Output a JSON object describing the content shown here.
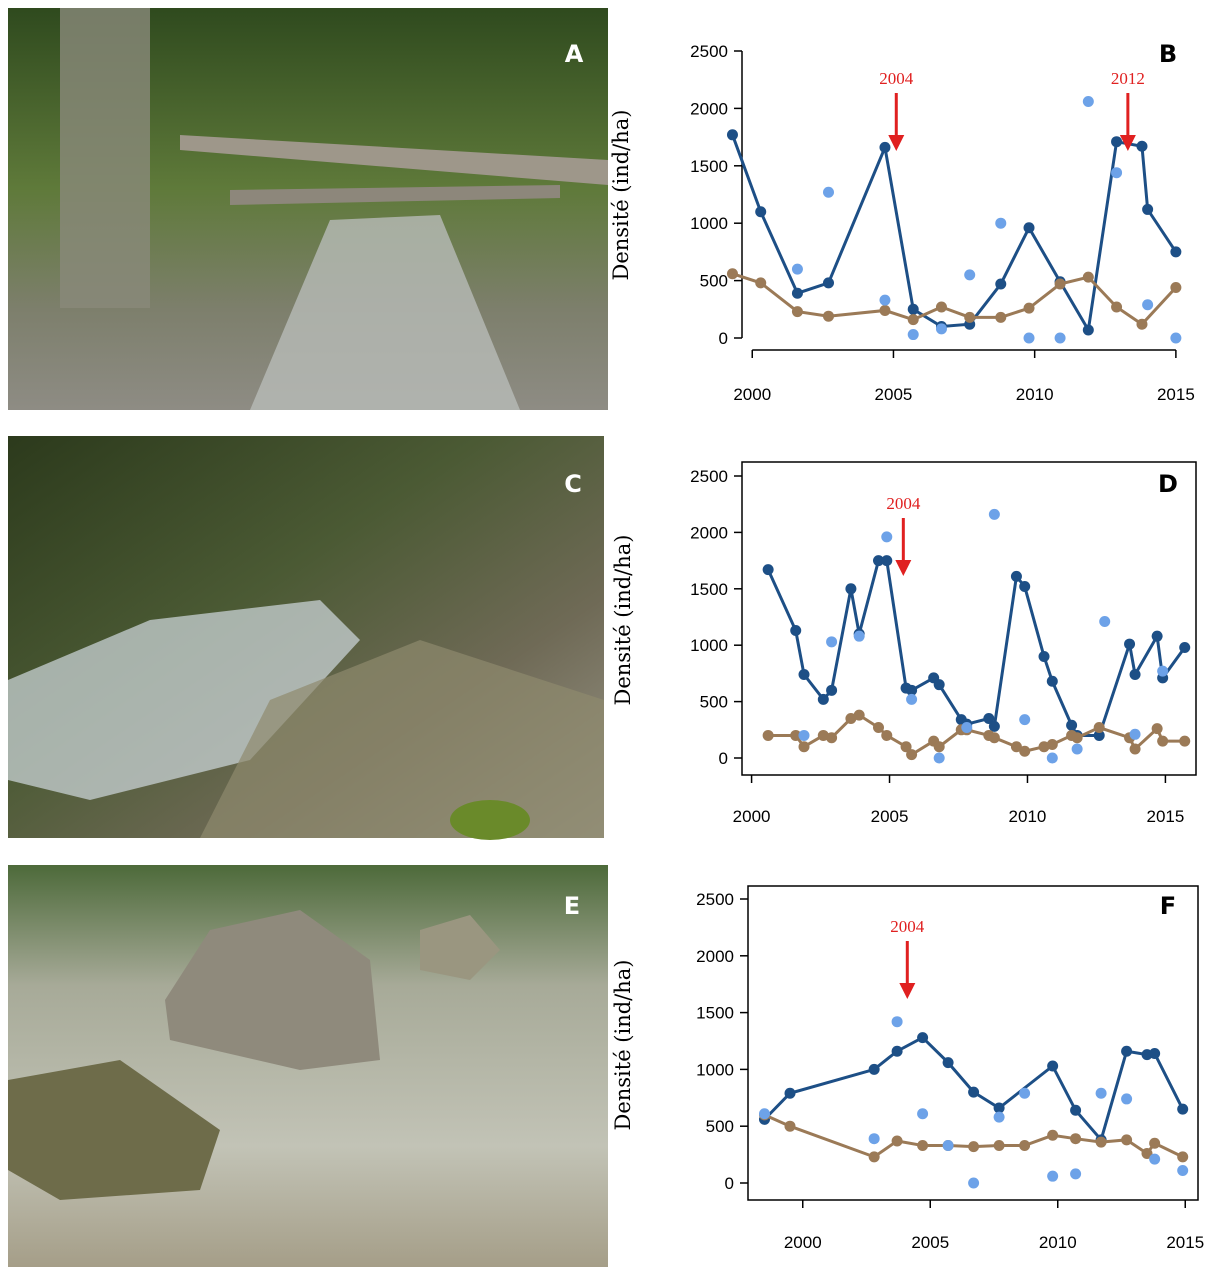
{
  "photos": [
    {
      "label": "A"
    },
    {
      "label": "C"
    },
    {
      "label": "E"
    }
  ],
  "chart_data": [
    {
      "type": "line",
      "panel": "B",
      "ylabel": "Densité (ind/ha)",
      "frame": false,
      "xlim": [
        1999,
        2015.5
      ],
      "xticks": [
        2000,
        2005,
        2010,
        2015
      ],
      "ylim": [
        0,
        2500
      ],
      "yticks": [
        0,
        500,
        1000,
        1500,
        2000,
        2500
      ],
      "annotations": [
        {
          "label": "2004",
          "x": 2005.1
        },
        {
          "label": "2012",
          "x": 2013.3
        }
      ],
      "series": [
        {
          "style": "line",
          "color": "#1d4f86",
          "x": [
            1999.3,
            2000.3,
            2001.6,
            2002.7,
            2004.7,
            2005.7,
            2006.7,
            2007.7,
            2008.8,
            2009.8,
            2010.9,
            2011.9,
            2012.9,
            2013.8,
            2014.0,
            2015.0
          ],
          "values": [
            1770,
            1100,
            390,
            480,
            1660,
            250,
            100,
            120,
            470,
            960,
            490,
            70,
            1710,
            1670,
            1120,
            750
          ]
        },
        {
          "style": "line",
          "color": "#9b7a57",
          "x": [
            1999.3,
            2000.3,
            2001.6,
            2002.7,
            2004.7,
            2005.7,
            2006.7,
            2007.7,
            2008.8,
            2009.8,
            2010.9,
            2011.9,
            2012.9,
            2013.8,
            2015.0
          ],
          "values": [
            560,
            480,
            230,
            190,
            240,
            160,
            270,
            180,
            180,
            260,
            470,
            530,
            270,
            120,
            440
          ]
        },
        {
          "style": "points",
          "color": "#6da2e8",
          "x": [
            2001.6,
            2002.7,
            2004.7,
            2005.7,
            2006.7,
            2007.7,
            2008.8,
            2009.8,
            2010.9,
            2011.9,
            2012.9,
            2014.0,
            2015.0
          ],
          "values": [
            600,
            1270,
            330,
            30,
            80,
            550,
            1000,
            0,
            0,
            2060,
            1440,
            290,
            0
          ]
        }
      ]
    },
    {
      "type": "line",
      "panel": "D",
      "ylabel": "Densité (ind/ha)",
      "frame": true,
      "xlim": [
        1999,
        2016
      ],
      "xticks": [
        2000,
        2005,
        2010,
        2015
      ],
      "ylim": [
        0,
        2500
      ],
      "yticks": [
        0,
        500,
        1000,
        1500,
        2000,
        2500
      ],
      "annotations": [
        {
          "label": "2004",
          "x": 2005.5
        }
      ],
      "series": [
        {
          "style": "line",
          "color": "#1d4f86",
          "x": [
            2000.6,
            2001.6,
            2001.9,
            2002.6,
            2002.9,
            2003.6,
            2003.9,
            2004.6,
            2004.9,
            2005.6,
            2005.8,
            2006.6,
            2006.8,
            2007.6,
            2007.8,
            2008.6,
            2008.8,
            2009.6,
            2009.9,
            2010.6,
            2010.9,
            2011.6,
            2011.8,
            2012.6,
            2013.7,
            2013.9,
            2014.7,
            2014.9,
            2015.7
          ],
          "values": [
            1670,
            1130,
            740,
            520,
            600,
            1500,
            1100,
            1750,
            1750,
            620,
            600,
            710,
            650,
            340,
            300,
            350,
            280,
            1610,
            1520,
            900,
            680,
            290,
            200,
            200,
            1010,
            740,
            1080,
            710,
            980
          ]
        },
        {
          "style": "line",
          "color": "#9b7a57",
          "x": [
            2000.6,
            2001.6,
            2001.9,
            2002.6,
            2002.9,
            2003.6,
            2003.9,
            2004.6,
            2004.9,
            2005.6,
            2005.8,
            2006.6,
            2006.8,
            2007.6,
            2007.8,
            2008.6,
            2008.8,
            2009.6,
            2009.9,
            2010.6,
            2010.9,
            2011.6,
            2011.8,
            2012.6,
            2013.7,
            2013.9,
            2014.7,
            2014.9,
            2015.7
          ],
          "values": [
            200,
            200,
            100,
            200,
            180,
            350,
            380,
            270,
            200,
            100,
            30,
            150,
            100,
            250,
            250,
            200,
            180,
            100,
            60,
            100,
            120,
            200,
            180,
            270,
            180,
            80,
            260,
            150,
            150
          ]
        },
        {
          "style": "points",
          "color": "#6da2e8",
          "x": [
            2001.9,
            2002.9,
            2003.9,
            2004.9,
            2005.8,
            2006.8,
            2007.8,
            2008.8,
            2009.9,
            2010.9,
            2011.8,
            2012.8,
            2013.9,
            2014.9
          ],
          "values": [
            200,
            1030,
            1080,
            1960,
            520,
            0,
            270,
            2160,
            340,
            0,
            80,
            1210,
            210,
            770
          ]
        }
      ]
    },
    {
      "type": "line",
      "panel": "F",
      "ylabel": "Densité (ind/ha)",
      "frame": true,
      "xlim": [
        1997.5,
        2015.5
      ],
      "xticks": [
        2000,
        2005,
        2010,
        2015
      ],
      "ylim": [
        0,
        2500
      ],
      "yticks": [
        0,
        500,
        1000,
        1500,
        2000,
        2500
      ],
      "annotations": [
        {
          "label": "2004",
          "x": 2004.1
        }
      ],
      "series": [
        {
          "style": "line",
          "color": "#1d4f86",
          "x": [
            1998.5,
            1999.5,
            2002.8,
            2003.7,
            2004.7,
            2005.7,
            2006.7,
            2007.7,
            2009.8,
            2010.7,
            2011.7,
            2012.7,
            2013.5,
            2013.8,
            2014.9
          ],
          "values": [
            560,
            790,
            1000,
            1160,
            1280,
            1060,
            800,
            660,
            1030,
            640,
            380,
            1160,
            1130,
            1140,
            650
          ]
        },
        {
          "style": "line",
          "color": "#9b7a57",
          "x": [
            1998.5,
            1999.5,
            2002.8,
            2003.7,
            2004.7,
            2005.7,
            2006.7,
            2007.7,
            2008.7,
            2009.8,
            2010.7,
            2011.7,
            2012.7,
            2013.5,
            2013.8,
            2014.9
          ],
          "values": [
            600,
            500,
            230,
            370,
            330,
            330,
            320,
            330,
            330,
            420,
            390,
            360,
            380,
            260,
            350,
            230
          ]
        },
        {
          "style": "points",
          "color": "#6da2e8",
          "x": [
            1998.5,
            2002.8,
            2003.7,
            2004.7,
            2005.7,
            2006.7,
            2007.7,
            2008.7,
            2009.8,
            2010.7,
            2011.7,
            2012.7,
            2013.8,
            2014.9
          ],
          "values": [
            610,
            390,
            1420,
            610,
            330,
            0,
            580,
            790,
            60,
            80,
            790,
            740,
            210,
            110
          ]
        }
      ]
    }
  ]
}
